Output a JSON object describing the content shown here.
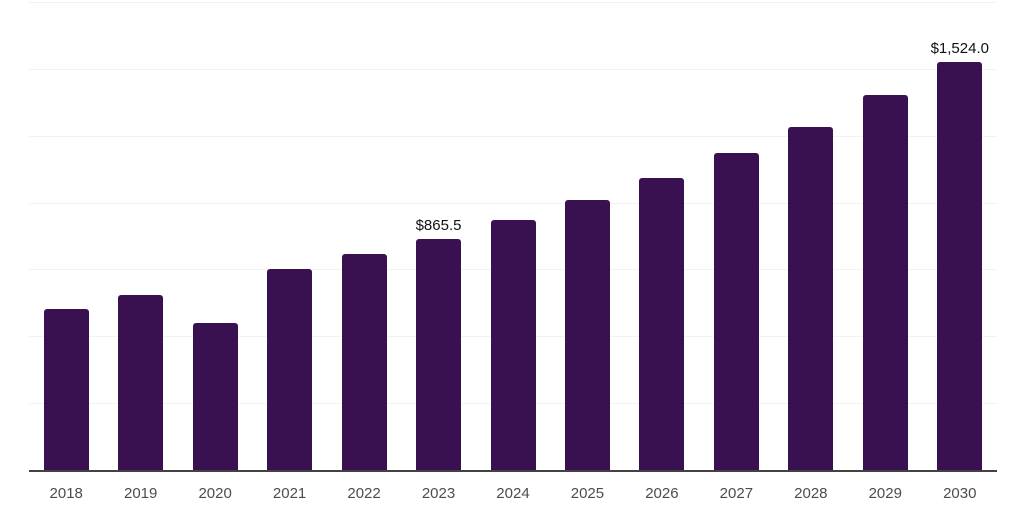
{
  "chart_data": {
    "type": "bar",
    "title": "",
    "xlabel": "",
    "ylabel": "",
    "categories": [
      "2018",
      "2019",
      "2020",
      "2021",
      "2022",
      "2023",
      "2024",
      "2025",
      "2026",
      "2027",
      "2028",
      "2029",
      "2030"
    ],
    "values": [
      603,
      653,
      551,
      752,
      808,
      865.5,
      935,
      1010,
      1092,
      1185,
      1284,
      1402,
      1524
    ],
    "annotations": [
      {
        "category": "2023",
        "text": "$865.5"
      },
      {
        "category": "2030",
        "text": "$1,524.0"
      }
    ],
    "ylim": [
      0,
      1750
    ],
    "grid_step": 250,
    "grid": true,
    "legend": false,
    "colors": {
      "bar": "#3a1150",
      "axis": "#424242",
      "grid": "#f2f2f2",
      "data_label": "#111111",
      "tick_label": "#4d4d4d",
      "background": "#ffffff"
    }
  }
}
